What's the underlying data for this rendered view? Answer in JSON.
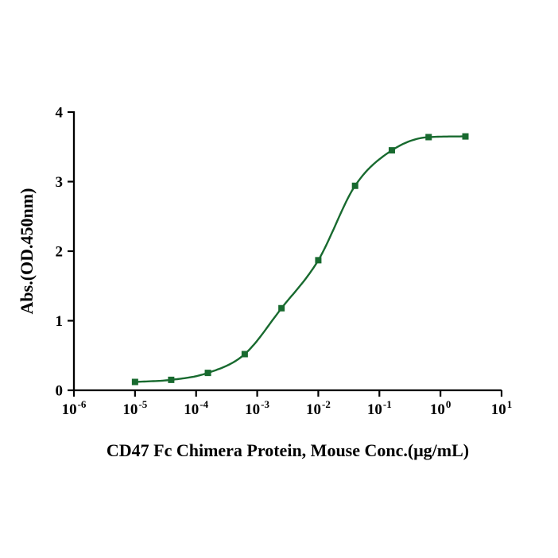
{
  "figure": {
    "background_color": "#ffffff"
  },
  "chart_data": {
    "type": "scatter",
    "fit": "4PL sigmoid dose-response curve",
    "title": "",
    "xlabel": "CD47 Fc Chimera Protein, Mouse Conc.(μg/mL)",
    "ylabel": "Abs.(OD.450nm)",
    "x_scale": "log10",
    "x": [
      1e-05,
      3.91e-05,
      0.000156,
      0.000625,
      0.0025,
      0.01,
      0.04,
      0.16,
      0.64,
      2.56
    ],
    "y": [
      0.12,
      0.15,
      0.25,
      0.52,
      1.18,
      1.87,
      2.94,
      3.45,
      3.64,
      3.65
    ],
    "x_tick_base": "10",
    "x_tick_exponents": [
      -6,
      -5,
      -4,
      -3,
      -2,
      -1,
      0,
      1
    ],
    "y_ticks": [
      0,
      1,
      2,
      3,
      4
    ],
    "xlim_exponents": [
      -6,
      1
    ],
    "ylim": [
      0,
      4
    ],
    "grid": false,
    "legend": "none",
    "marker": "filled-square",
    "series_color": "#186a2f",
    "axis_color": "#000000"
  }
}
